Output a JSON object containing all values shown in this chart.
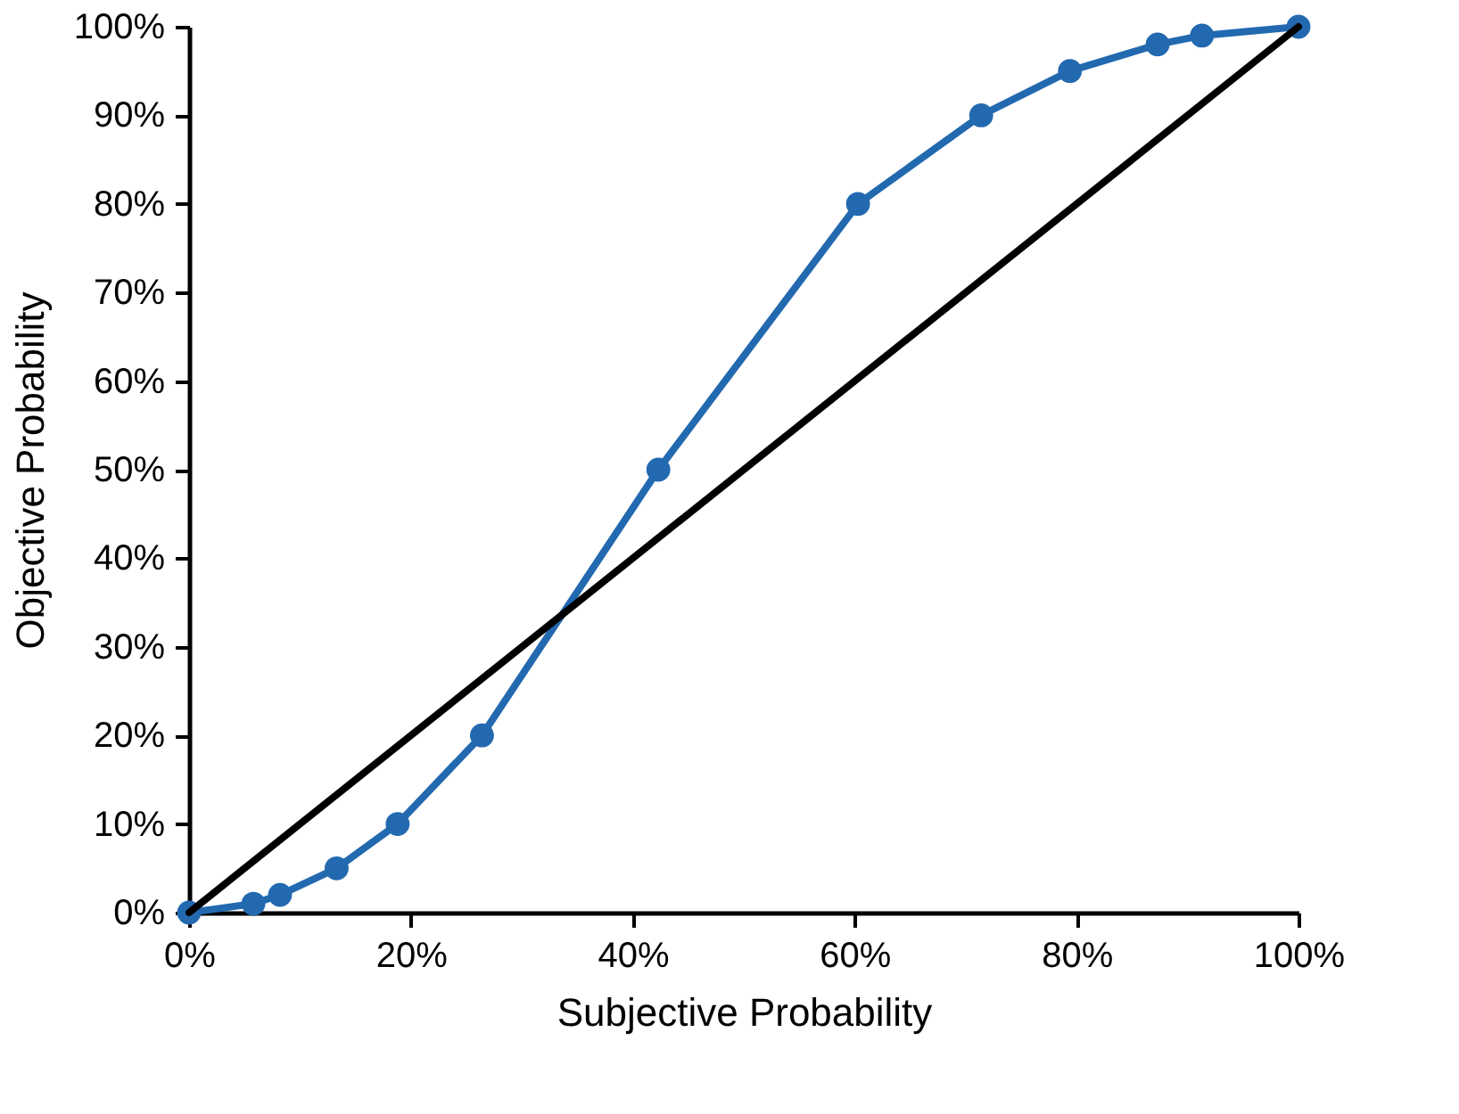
{
  "chart_data": {
    "type": "line",
    "xlabel": "Subjective Probability",
    "ylabel": "Objective Probability",
    "xlim": [
      0,
      100
    ],
    "ylim": [
      0,
      100
    ],
    "xticks": [
      {
        "value": 0,
        "label": "0%"
      },
      {
        "value": 20,
        "label": "20%"
      },
      {
        "value": 40,
        "label": "40%"
      },
      {
        "value": 60,
        "label": "60%"
      },
      {
        "value": 80,
        "label": "80%"
      },
      {
        "value": 100,
        "label": "100%"
      }
    ],
    "yticks": [
      {
        "value": 0,
        "label": "0%"
      },
      {
        "value": 10,
        "label": "10%"
      },
      {
        "value": 20,
        "label": "20%"
      },
      {
        "value": 30,
        "label": "30%"
      },
      {
        "value": 40,
        "label": "40%"
      },
      {
        "value": 50,
        "label": "50%"
      },
      {
        "value": 60,
        "label": "60%"
      },
      {
        "value": 70,
        "label": "70%"
      },
      {
        "value": 80,
        "label": "80%"
      },
      {
        "value": 90,
        "label": "90%"
      },
      {
        "value": 100,
        "label": "100%"
      }
    ],
    "grid": false,
    "series": [
      {
        "color": "#2269b0",
        "marker": "circle",
        "x": [
          0,
          5.8,
          8.2,
          13.3,
          18.8,
          26.4,
          42.3,
          60.3,
          71.4,
          79.4,
          87.3,
          91.3,
          100
        ],
        "values": [
          0,
          1,
          2,
          5,
          10,
          20,
          50,
          80,
          90,
          95,
          98,
          99,
          100
        ]
      },
      {
        "color": "#000000",
        "marker": "none",
        "x": [
          0,
          100
        ],
        "values": [
          0,
          100
        ]
      }
    ]
  }
}
